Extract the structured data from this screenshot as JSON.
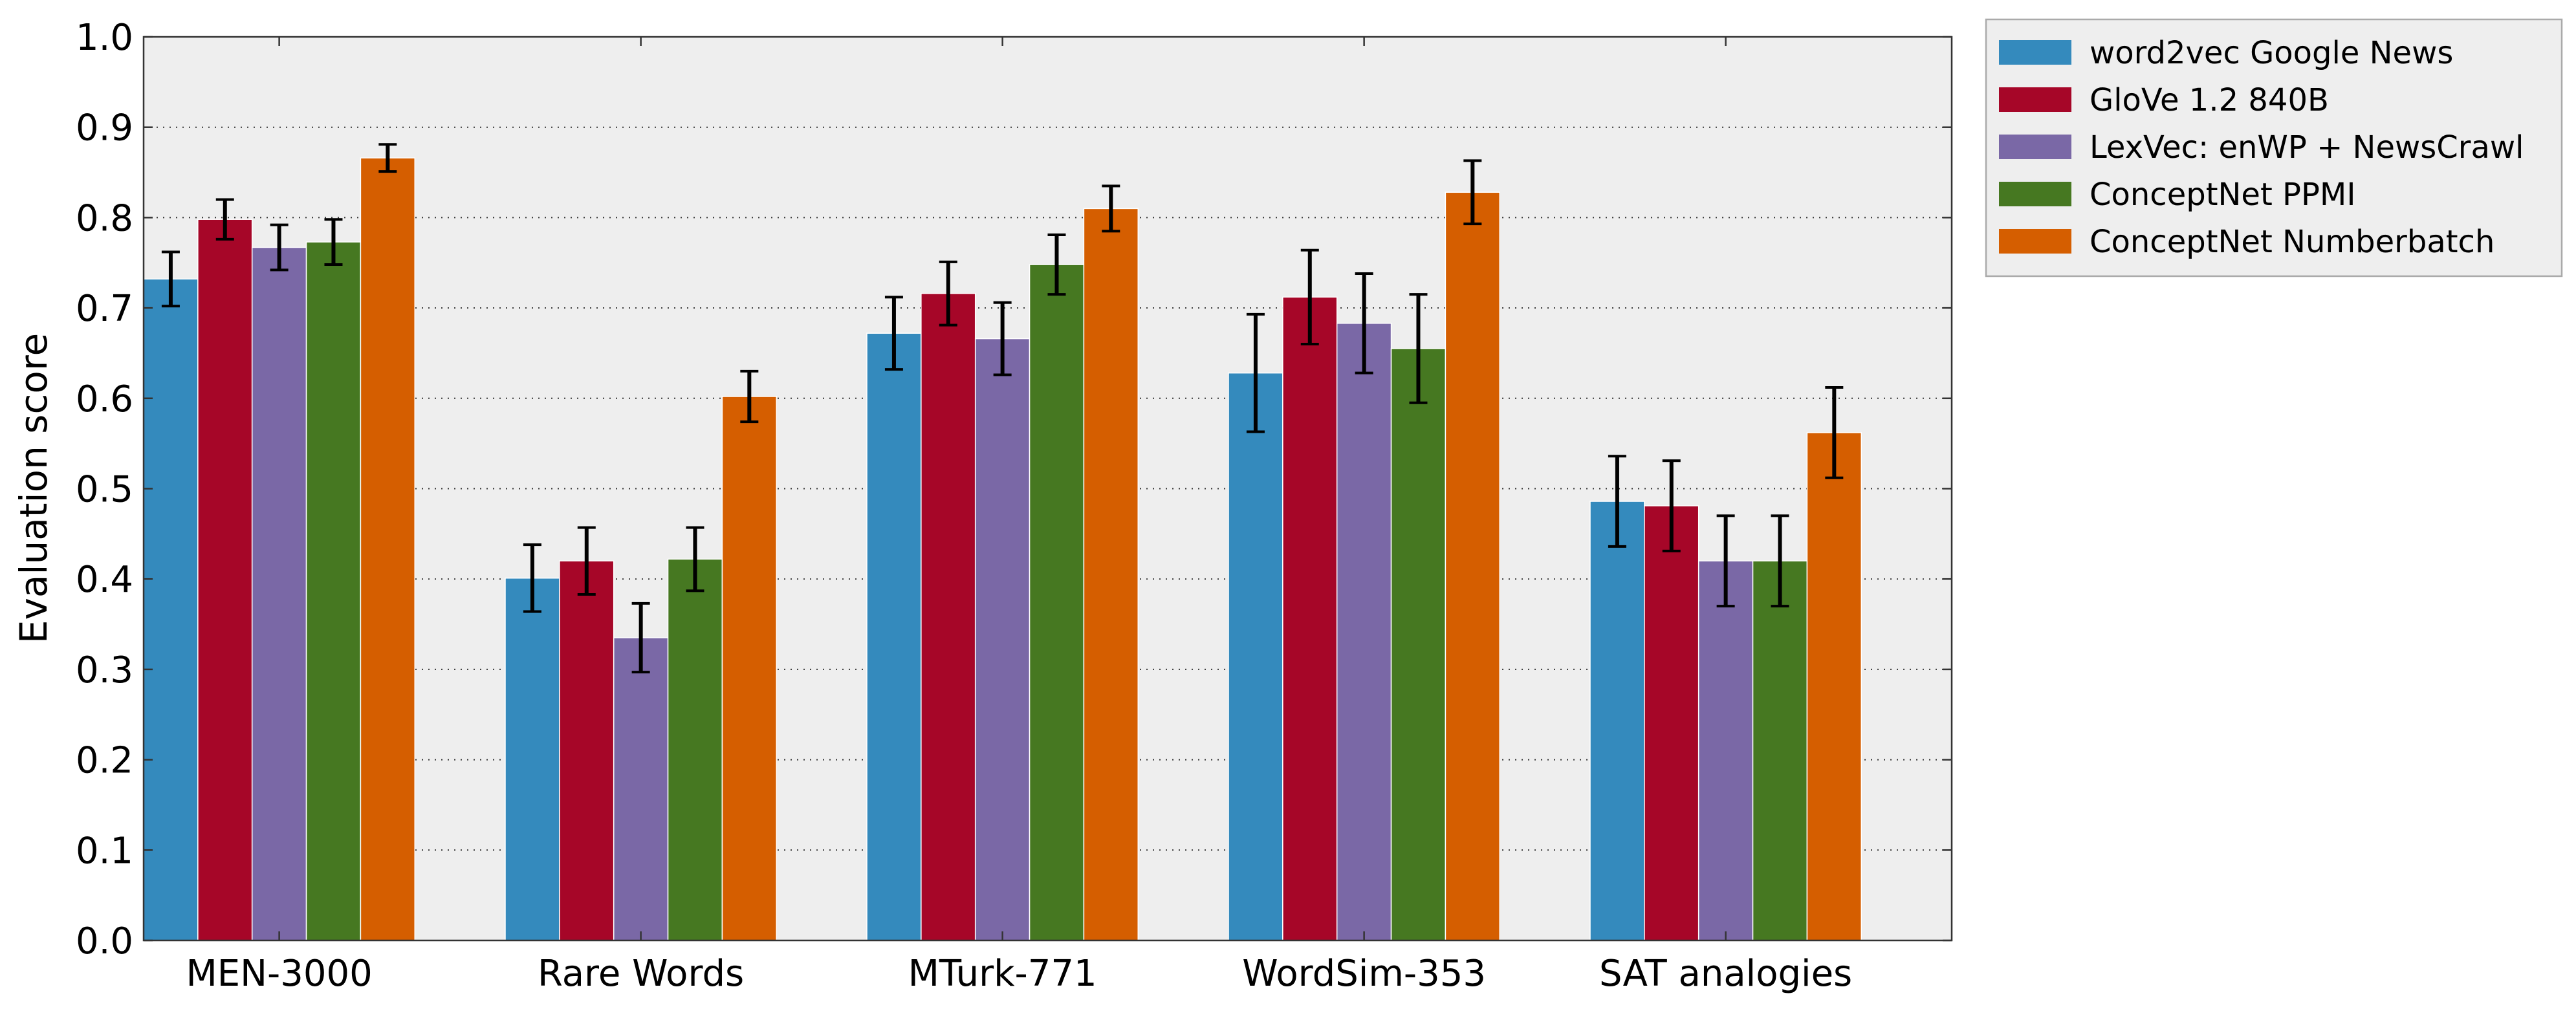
{
  "chart_data": {
    "type": "bar",
    "title": "",
    "xlabel": "",
    "ylabel": "Evaluation score",
    "ylim": [
      0,
      1.0
    ],
    "yticks": [
      "0.0",
      "0.1",
      "0.2",
      "0.3",
      "0.4",
      "0.5",
      "0.6",
      "0.7",
      "0.8",
      "0.9",
      "1.0"
    ],
    "grid": true,
    "legend_position": "outside-top-right",
    "categories": [
      "MEN-3000",
      "Rare Words",
      "MTurk-771",
      "WordSim-353",
      "SAT analogies"
    ],
    "series": [
      {
        "name": "word2vec Google News",
        "color": "#348abd",
        "values": [
          0.732,
          0.401,
          0.672,
          0.628,
          0.486
        ],
        "errors": [
          0.03,
          0.037,
          0.04,
          0.065,
          0.05
        ]
      },
      {
        "name": "GloVe 1.2 840B",
        "color": "#a60628",
        "values": [
          0.798,
          0.42,
          0.716,
          0.712,
          0.481
        ],
        "errors": [
          0.022,
          0.037,
          0.035,
          0.052,
          0.05
        ]
      },
      {
        "name": "LexVec: enWP + NewsCrawl",
        "color": "#7a68a6",
        "values": [
          0.767,
          0.335,
          0.666,
          0.683,
          0.42
        ],
        "errors": [
          0.025,
          0.038,
          0.04,
          0.055,
          0.05
        ]
      },
      {
        "name": "ConceptNet PPMI",
        "color": "#467821",
        "values": [
          0.773,
          0.422,
          0.748,
          0.655,
          0.42
        ],
        "errors": [
          0.025,
          0.035,
          0.033,
          0.06,
          0.05
        ]
      },
      {
        "name": "ConceptNet Numberbatch",
        "color": "#d55e00",
        "values": [
          0.866,
          0.602,
          0.81,
          0.828,
          0.562
        ],
        "errors": [
          0.015,
          0.028,
          0.025,
          0.035,
          0.05
        ]
      }
    ]
  }
}
